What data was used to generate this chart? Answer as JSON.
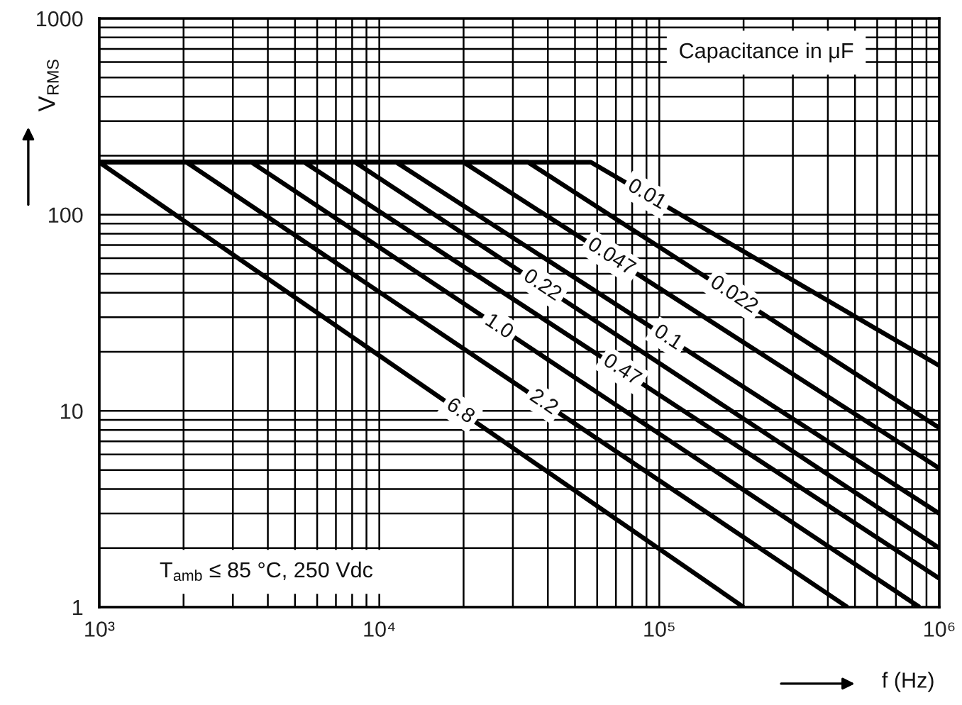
{
  "chart_data": {
    "type": "line",
    "xlabel": "f (Hz)",
    "ylabel": "V$_{RMS}$",
    "log": "xy",
    "xlim": [
      1000,
      1000000
    ],
    "ylim": [
      1,
      1000
    ],
    "xticks": [
      {
        "value": 1000,
        "label": "10³"
      },
      {
        "value": 10000,
        "label": "10⁴"
      },
      {
        "value": 100000,
        "label": "10⁵"
      },
      {
        "value": 1000000,
        "label": "10⁶"
      }
    ],
    "yticks": [
      1,
      10,
      100,
      1000
    ],
    "grid": true,
    "line_style": "solid",
    "marker": "none",
    "annotations": [
      "Capacitance in μF",
      "T$_{amb}$ ≤ 85 °C, 250 Vdc"
    ],
    "series": [
      {
        "name": "0.01",
        "color": "#000000",
        "x": [
          1000,
          57000,
          1000000
        ],
        "values": [
          185,
          185,
          17
        ]
      },
      {
        "name": "0.022",
        "color": "#000000",
        "x": [
          1000,
          34000,
          1000000
        ],
        "values": [
          185,
          185,
          8.2
        ]
      },
      {
        "name": "0.047",
        "color": "#000000",
        "x": [
          1000,
          20000,
          1000000
        ],
        "values": [
          185,
          185,
          5.1
        ]
      },
      {
        "name": "0.1",
        "color": "#000000",
        "x": [
          1000,
          11500,
          1000000
        ],
        "values": [
          185,
          185,
          3.0
        ]
      },
      {
        "name": "0.22",
        "color": "#000000",
        "x": [
          1000,
          8200,
          1000000
        ],
        "values": [
          185,
          185,
          2.0
        ]
      },
      {
        "name": "0.47",
        "color": "#000000",
        "x": [
          1000,
          5400,
          1000000
        ],
        "values": [
          185,
          185,
          1.4
        ]
      },
      {
        "name": "1.0",
        "color": "#000000",
        "x": [
          1000,
          3500,
          850000
        ],
        "values": [
          185,
          185,
          1
        ]
      },
      {
        "name": "2.2",
        "color": "#000000",
        "x": [
          1000,
          2050,
          470000
        ],
        "values": [
          185,
          185,
          1
        ]
      },
      {
        "name": "6.8",
        "color": "#000000",
        "x": [
          1000,
          200000
        ],
        "values": [
          185,
          1
        ]
      }
    ]
  }
}
